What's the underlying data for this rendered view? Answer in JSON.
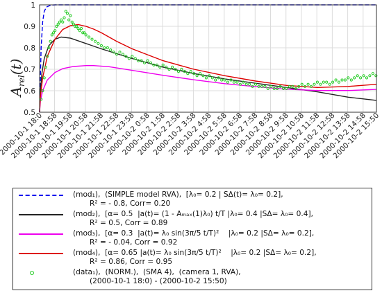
{
  "chart_data": {
    "type": "line",
    "title": "",
    "xlabel": "",
    "ylabel_main": "A",
    "ylabel_sub": "rel",
    "ylabel_arg": "(t)",
    "ylim": [
      0.5,
      1
    ],
    "yticks": [
      0.5,
      0.6,
      0.7,
      0.8,
      0.9,
      1
    ],
    "ytick_labels": [
      "0.5",
      "0.6",
      "0.7",
      "0.8",
      "0.9",
      "1"
    ],
    "x_range_hours": [
      0,
      21.83
    ],
    "x_tick_labels": [
      "2000-10-1 18:0",
      "2000-10-1 18:58",
      "2000-10-1 19:58",
      "2000-10-1 20:58",
      "2000-10-1 21:58",
      "2000-10-1 22:58",
      "2000-10-1 23:58",
      "2000-10-2 0:58",
      "2000-10-2 1:58",
      "2000-10-2 2:58",
      "2000-10-2 3:58",
      "2000-10-2 4:58",
      "2000-10-2 5:58",
      "2000-10-2 6:58",
      "2000-10-2 7:58",
      "2000-10-2 8:58",
      "2000-10-2 9:58",
      "2000-10-2 10:58",
      "2000-10-2 11:58",
      "2000-10-2 12:58",
      "2000-10-2 13:58",
      "2000-10-2 14:58",
      "2000-10-2 15:50"
    ],
    "x_tick_hours": [
      0,
      0.967,
      1.967,
      2.967,
      3.967,
      4.967,
      5.967,
      6.967,
      7.967,
      8.967,
      9.967,
      10.967,
      11.967,
      12.967,
      13.967,
      14.967,
      15.967,
      16.967,
      17.967,
      18.967,
      19.967,
      20.967,
      21.833
    ],
    "grid": true,
    "legend_position": "below",
    "series": [
      {
        "name": "mod_1",
        "color": "#0000ee",
        "dash": true,
        "x": [
          0,
          0.1,
          0.2,
          0.3,
          0.45,
          0.6,
          0.8,
          1.0,
          1.5,
          3,
          6,
          10,
          15,
          21.83
        ],
        "y": [
          0.5,
          0.8,
          0.92,
          0.97,
          0.99,
          0.995,
          0.999,
          1.0,
          1.0,
          1.0,
          1.0,
          1.0,
          1.0,
          1.0
        ]
      },
      {
        "name": "mod_2",
        "color": "#222222",
        "x": [
          0,
          0.05,
          0.15,
          0.3,
          0.6,
          1.0,
          1.4,
          2.0,
          3.0,
          4.0,
          6.0,
          8.0,
          10.0,
          12.0,
          14.0,
          16.0,
          18.0,
          20.0,
          21.83
        ],
        "y": [
          0.5,
          0.6,
          0.68,
          0.75,
          0.81,
          0.84,
          0.85,
          0.845,
          0.82,
          0.795,
          0.75,
          0.71,
          0.68,
          0.655,
          0.635,
          0.615,
          0.595,
          0.57,
          0.555
        ]
      },
      {
        "name": "mod_3",
        "color": "#ee00ee",
        "x": [
          0,
          0.05,
          0.2,
          0.5,
          1.0,
          1.5,
          2.2,
          3.0,
          3.5,
          4.5,
          6.0,
          8.0,
          10.0,
          12.0,
          14.0,
          16.0,
          18.0,
          20.0,
          21.83
        ],
        "y": [
          0.5,
          0.55,
          0.6,
          0.65,
          0.685,
          0.703,
          0.713,
          0.717,
          0.717,
          0.712,
          0.695,
          0.672,
          0.651,
          0.633,
          0.619,
          0.607,
          0.601,
          0.601,
          0.606
        ]
      },
      {
        "name": "mod_4",
        "color": "#dd0000",
        "x": [
          0,
          0.05,
          0.2,
          0.5,
          1.0,
          1.5,
          2.0,
          2.5,
          3.0,
          3.5,
          4.0,
          5.0,
          6.0,
          8.0,
          10.0,
          12.0,
          14.0,
          16.0,
          18.0,
          20.0,
          21.83
        ],
        "y": [
          0.5,
          0.57,
          0.66,
          0.76,
          0.84,
          0.885,
          0.903,
          0.908,
          0.9,
          0.887,
          0.87,
          0.83,
          0.795,
          0.74,
          0.7,
          0.67,
          0.645,
          0.625,
          0.615,
          0.62,
          0.63
        ]
      }
    ],
    "data_series": {
      "name": "data_1",
      "color": "#22cc22",
      "marker": "circle",
      "x": [
        0.1,
        0.2,
        0.3,
        0.4,
        0.5,
        0.6,
        0.7,
        0.8,
        0.9,
        1.0,
        1.1,
        1.2,
        1.3,
        1.4,
        1.5,
        1.6,
        1.7,
        1.8,
        1.9,
        2.0,
        2.1,
        2.2,
        2.3,
        2.4,
        2.5,
        2.6,
        2.7,
        2.8,
        2.9,
        3.0,
        3.2,
        3.4,
        3.6,
        3.8,
        4.0,
        4.2,
        4.4,
        4.6,
        4.8,
        5.0,
        5.2,
        5.4,
        5.6,
        5.8,
        6.0,
        6.2,
        6.4,
        6.6,
        6.8,
        7.0,
        7.2,
        7.4,
        7.6,
        7.8,
        8.0,
        8.2,
        8.4,
        8.6,
        8.8,
        9.0,
        9.2,
        9.4,
        9.6,
        9.8,
        10.0,
        10.2,
        10.4,
        10.6,
        10.8,
        11.0,
        11.2,
        11.4,
        11.6,
        11.8,
        12.0,
        12.2,
        12.4,
        12.6,
        12.8,
        13.0,
        13.2,
        13.4,
        13.6,
        13.8,
        14.0,
        14.2,
        14.4,
        14.6,
        14.8,
        15.0,
        15.2,
        15.4,
        15.6,
        15.8,
        16.0,
        16.2,
        16.4,
        16.6,
        16.8,
        17.0,
        17.2,
        17.4,
        17.6,
        17.8,
        18.0,
        18.2,
        18.4,
        18.6,
        18.8,
        19.0,
        19.2,
        19.4,
        19.6,
        19.8,
        20.0,
        20.2,
        20.4,
        20.6,
        20.8,
        21.0,
        21.2,
        21.4,
        21.6,
        21.8
      ],
      "y": [
        0.56,
        0.6,
        0.66,
        0.71,
        0.76,
        0.8,
        0.83,
        0.86,
        0.87,
        0.88,
        0.9,
        0.91,
        0.92,
        0.93,
        0.92,
        0.94,
        0.97,
        0.96,
        0.93,
        0.95,
        0.92,
        0.91,
        0.9,
        0.9,
        0.89,
        0.88,
        0.89,
        0.87,
        0.87,
        0.86,
        0.85,
        0.84,
        0.83,
        0.82,
        0.81,
        0.8,
        0.8,
        0.79,
        0.78,
        0.77,
        0.78,
        0.77,
        0.76,
        0.75,
        0.76,
        0.75,
        0.74,
        0.74,
        0.73,
        0.74,
        0.73,
        0.72,
        0.72,
        0.71,
        0.72,
        0.71,
        0.7,
        0.71,
        0.7,
        0.69,
        0.7,
        0.69,
        0.68,
        0.69,
        0.68,
        0.67,
        0.68,
        0.67,
        0.66,
        0.67,
        0.66,
        0.65,
        0.66,
        0.65,
        0.65,
        0.64,
        0.65,
        0.64,
        0.64,
        0.63,
        0.64,
        0.63,
        0.63,
        0.62,
        0.63,
        0.62,
        0.62,
        0.62,
        0.61,
        0.62,
        0.61,
        0.61,
        0.62,
        0.61,
        0.61,
        0.62,
        0.62,
        0.61,
        0.62,
        0.63,
        0.62,
        0.63,
        0.62,
        0.63,
        0.64,
        0.63,
        0.64,
        0.64,
        0.63,
        0.64,
        0.65,
        0.64,
        0.65,
        0.65,
        0.66,
        0.65,
        0.66,
        0.67,
        0.66,
        0.67,
        0.66,
        0.67,
        0.68,
        0.67
      ]
    }
  },
  "legend": {
    "entries": [
      {
        "id": "mod1",
        "color": "#0000ee",
        "dash": true,
        "lines": [
          "(mod₁),  (SIMPLE model RVA),  [λ₀= 0.2 | SΔ(t)= λ₀= 0.2],",
          "R² = - 0.8, Corr= 0.20"
        ]
      },
      {
        "id": "mod2",
        "color": "#222222",
        "dash": false,
        "lines": [
          "(mod₂),  [α= 0.5  |a(t)= (1 - Aₘₐₓ(1)λ₀) t/T |λ₀= 0.4 |SΔ= λ₀= 0.4],",
          "R² = 0.5, Corr = 0.89"
        ]
      },
      {
        "id": "mod3",
        "color": "#ee00ee",
        "dash": false,
        "lines": [
          "(mod₃),  [α= 0.3  |a(t)= λ₀ sin(3π/5 t/T)²    |λ₀= 0.2 |SΔ= λ₀= 0.2],",
          "R² = - 0.04, Corr = 0.92"
        ]
      },
      {
        "id": "mod4",
        "color": "#dd0000",
        "dash": false,
        "lines": [
          "(mod₄),  [α= 0.65 |a(t)= λ₀ sin(3π/5 t/T)²    |λ₀= 0.2 |SΔ= λ₀= 0.2],",
          "R² = 0.86, Corr = 0.95"
        ]
      },
      {
        "id": "data1",
        "color": "#22cc22",
        "dash": false,
        "marker": true,
        "lines": [
          "(data₁),  (NORM.),  (SMA 4),  (camera 1, RVA),",
          "(2000-10-1 18:0) - (2000-10-2 15:50)"
        ]
      }
    ]
  }
}
